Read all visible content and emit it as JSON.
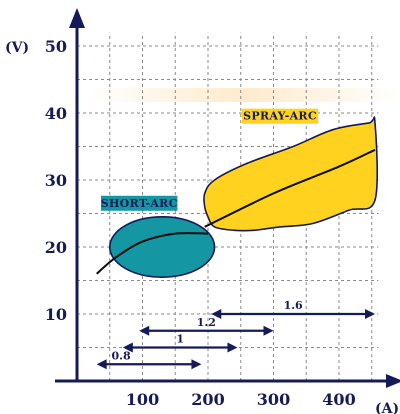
{
  "chart_data": {
    "type": "area",
    "x_unit": "(A)",
    "y_unit": "(V)",
    "xlim": [
      0,
      460
    ],
    "ylim": [
      0,
      52
    ],
    "x_ticks": [
      "100",
      "200",
      "300",
      "400"
    ],
    "y_ticks": [
      "10",
      "20",
      "30",
      "40",
      "50"
    ],
    "grid": true,
    "regions": [
      {
        "name": "SHORT-ARC",
        "color": "#1497a3",
        "center": [
          130,
          20
        ],
        "x_range": [
          50,
          210
        ],
        "y_range": [
          15.5,
          24.5
        ],
        "curve": [
          [
            30,
            16
          ],
          [
            60,
            18.5
          ],
          [
            100,
            20.8
          ],
          [
            150,
            22
          ],
          [
            200,
            22
          ]
        ]
      },
      {
        "name": "SPRAY-ARC",
        "color": "#ffd21f",
        "outline": [
          [
            200,
            24.5
          ],
          [
            195,
            26
          ],
          [
            195,
            28
          ],
          [
            210,
            30
          ],
          [
            260,
            32.5
          ],
          [
            330,
            35
          ],
          [
            390,
            37.5
          ],
          [
            445,
            38.5
          ],
          [
            455,
            38.5
          ],
          [
            455,
            27
          ],
          [
            415,
            25.5
          ],
          [
            360,
            23.5
          ],
          [
            310,
            23
          ],
          [
            270,
            22.5
          ],
          [
            240,
            22.5
          ],
          [
            210,
            23
          ]
        ],
        "curve": [
          [
            195,
            23
          ],
          [
            300,
            28
          ],
          [
            400,
            32
          ],
          [
            455,
            34.5
          ]
        ]
      }
    ],
    "current_ranges": [
      {
        "label": "0.8",
        "x_range": [
          30,
          190
        ],
        "y": 2.5
      },
      {
        "label": "1",
        "x_range": [
          70,
          245
        ],
        "y": 5
      },
      {
        "label": "1.2",
        "x_range": [
          95,
          300
        ],
        "y": 7.5
      },
      {
        "label": "1.6",
        "x_range": [
          205,
          455
        ],
        "y": 10
      }
    ],
    "colors": {
      "axis": "#151a59",
      "grid": "#8a8a8a",
      "arrow": "#151a59"
    }
  }
}
